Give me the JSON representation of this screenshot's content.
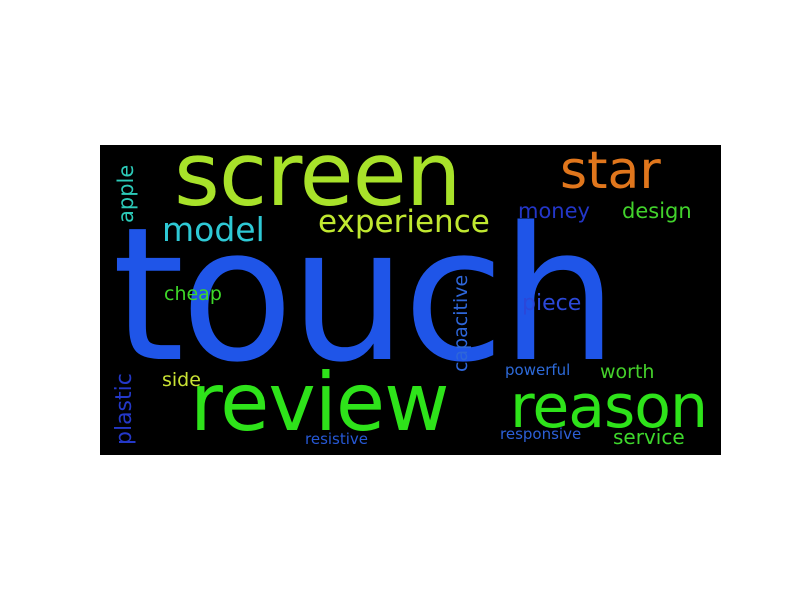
{
  "wordcloud": {
    "background": "#000000",
    "words": {
      "touch": {
        "text": "touch",
        "color": "#1f55e8"
      },
      "screen": {
        "text": "screen",
        "color": "#a8e22a"
      },
      "star": {
        "text": "star",
        "color": "#e0761c"
      },
      "review": {
        "text": "review",
        "color": "#2ee31a"
      },
      "reason": {
        "text": "reason",
        "color": "#2ee31a"
      },
      "experience": {
        "text": "experience",
        "color": "#c0e830"
      },
      "model": {
        "text": "model",
        "color": "#2ec9d5"
      },
      "money": {
        "text": "money",
        "color": "#2336c8"
      },
      "design": {
        "text": "design",
        "color": "#42d22c"
      },
      "piece": {
        "text": "piece",
        "color": "#2b48d9"
      },
      "cheap": {
        "text": "cheap",
        "color": "#3ed829"
      },
      "side": {
        "text": "side",
        "color": "#c9e234"
      },
      "worth": {
        "text": "worth",
        "color": "#45d12b"
      },
      "powerful": {
        "text": "powerful",
        "color": "#2d6ad9"
      },
      "service": {
        "text": "service",
        "color": "#3ed82c"
      },
      "resistive": {
        "text": "resistive",
        "color": "#2658d5"
      },
      "responsive": {
        "text": "responsive",
        "color": "#2c5fd6"
      },
      "apple": {
        "text": "apple",
        "color": "#2ccab8"
      },
      "plastic": {
        "text": "plastic",
        "color": "#2438c8"
      },
      "capacitive": {
        "text": "capacitive",
        "color": "#2e66d9"
      }
    }
  }
}
